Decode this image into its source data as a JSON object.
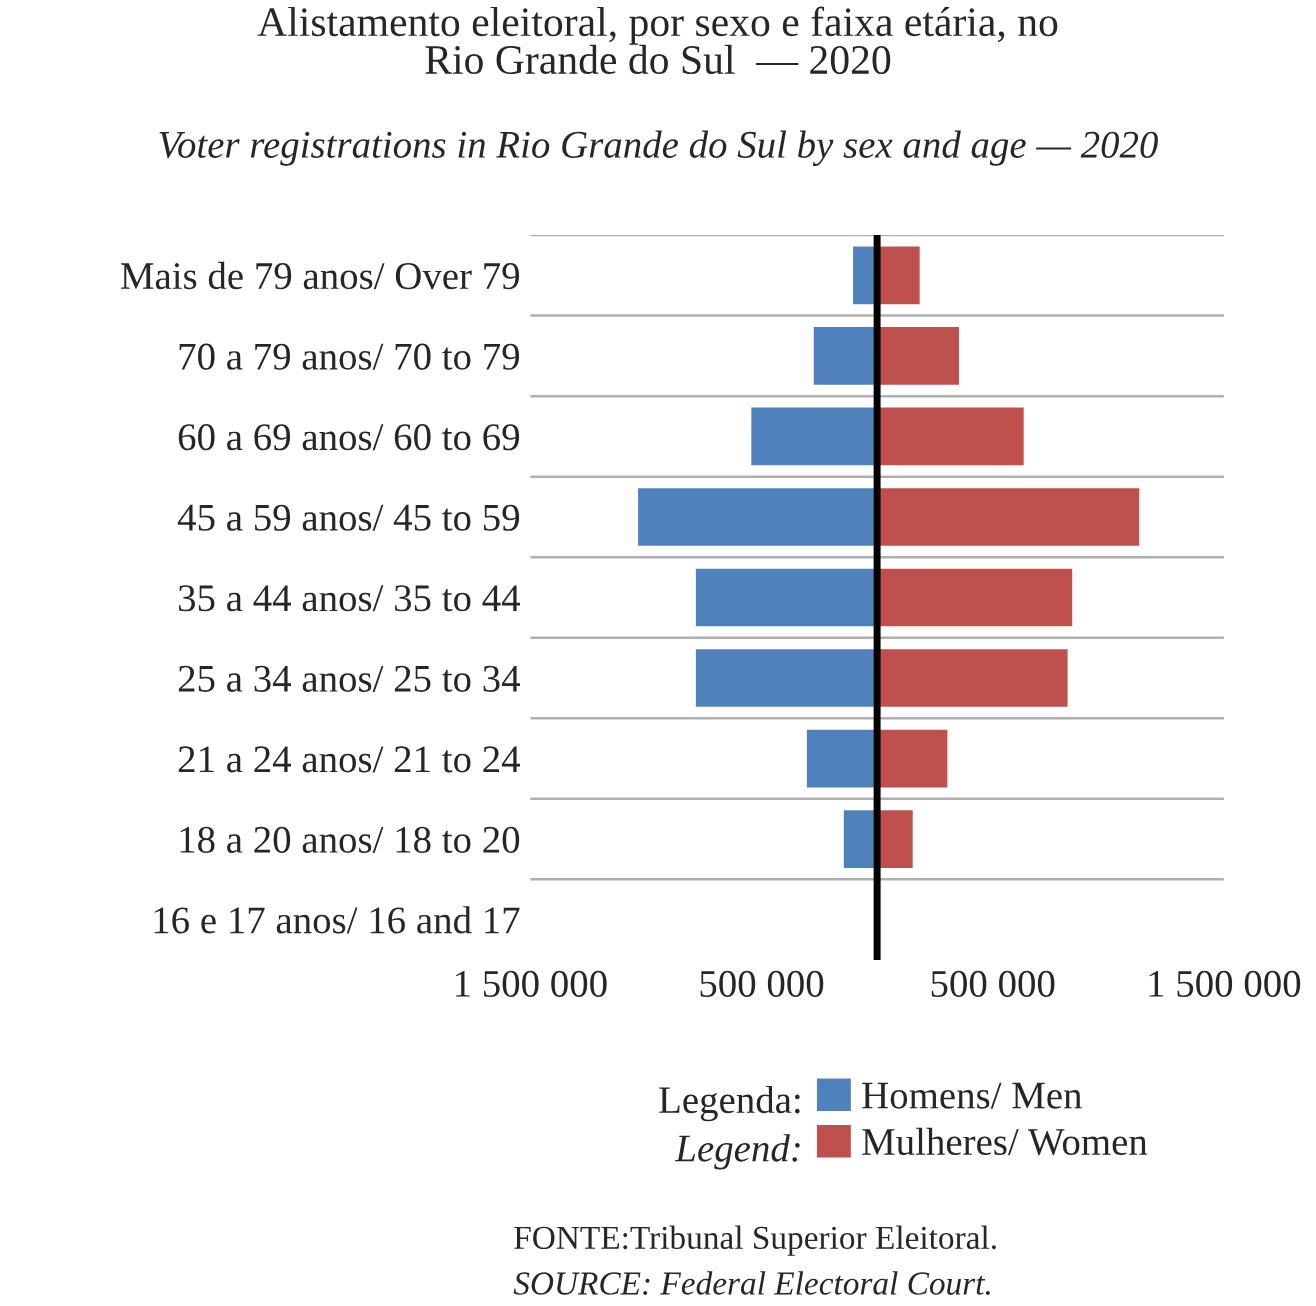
{
  "chart_data": {
    "type": "bar",
    "orientation": "horizontal",
    "title": "Alistamento eleitoral, por sexo e faixa etária, no\nRio Grande do Sul  — 2020",
    "subtitle": "Voter registrations in Rio Grande do Sul by sex and age — 2020",
    "categories": [
      "Mais de 79 anos/ Over 79",
      "70 a 79 anos/ 70 to 79",
      "60 a 69 anos/ 60 to 69",
      "45 a 59 anos/ 45 to 59",
      "35 a 44 anos/ 35 to 44",
      "25 a 34 anos/ 25 to 34",
      "21 a 24 anos/ 21 to 24",
      "18 a 20 anos/ 18 to 20",
      "16 e 17 anos/ 16 and 17"
    ],
    "series": [
      {
        "name": "Homens/ Men",
        "color": "#4f81bd",
        "values": [
          -110000,
          -280000,
          -550000,
          -1040000,
          -790000,
          -790000,
          -310000,
          -150000,
          null
        ]
      },
      {
        "name": "Mulheres/ Women",
        "color": "#c0504d",
        "values": [
          190000,
          360000,
          640000,
          1140000,
          850000,
          830000,
          310000,
          160000,
          null
        ]
      }
    ],
    "stacked": true,
    "xlim": [
      -1500000,
      1500000
    ],
    "xticks": [
      {
        "value": -1500000,
        "label": "1 500 000"
      },
      {
        "value": -500000,
        "label": "500 000"
      },
      {
        "value": 500000,
        "label": "500 000"
      },
      {
        "value": 1500000,
        "label": "1 500 000"
      }
    ],
    "ref_lines": [
      {
        "axis": "x",
        "value": 0,
        "color": "#000000"
      }
    ],
    "grid": "y",
    "legend": "bottom",
    "annotations": [
      "Legenda:",
      "Legend:",
      "FONTE:Tribunal Superior Eleitoral.",
      "SOURCE: Federal Electoral Court."
    ]
  }
}
